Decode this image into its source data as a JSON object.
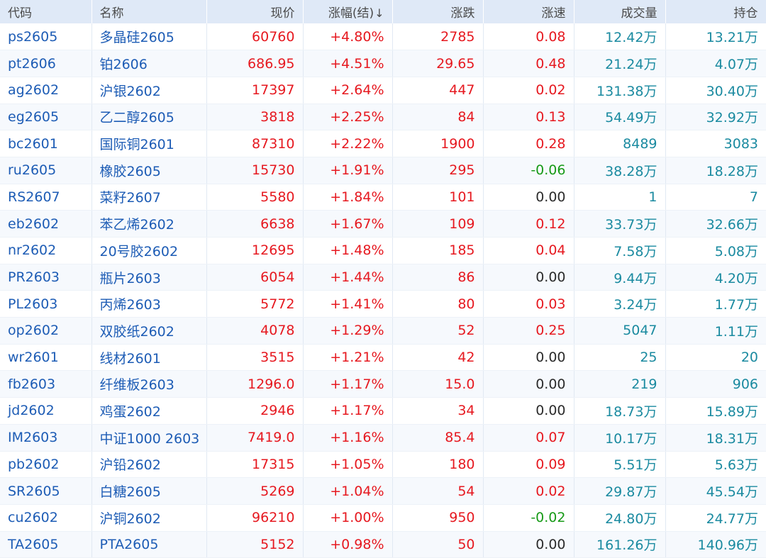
{
  "header": {
    "code": "代码",
    "name": "名称",
    "price": "现价",
    "change_pct": "涨幅(结)",
    "change": "涨跌",
    "speed": "涨速",
    "volume": "成交量",
    "open_interest": "持仓"
  },
  "rows": [
    {
      "code": "ps2605",
      "name": "多晶硅2605",
      "price": "60760",
      "change_pct": "+4.80%",
      "change": "2785",
      "speed": "0.08",
      "speed_dir": "up",
      "volume": "12.42万",
      "open_interest": "13.21万"
    },
    {
      "code": "pt2606",
      "name": "铂2606",
      "price": "686.95",
      "change_pct": "+4.51%",
      "change": "29.65",
      "speed": "0.48",
      "speed_dir": "up",
      "volume": "21.24万",
      "open_interest": "4.07万"
    },
    {
      "code": "ag2602",
      "name": "沪银2602",
      "price": "17397",
      "change_pct": "+2.64%",
      "change": "447",
      "speed": "0.02",
      "speed_dir": "up",
      "volume": "131.38万",
      "open_interest": "30.40万"
    },
    {
      "code": "eg2605",
      "name": "乙二醇2605",
      "price": "3818",
      "change_pct": "+2.25%",
      "change": "84",
      "speed": "0.13",
      "speed_dir": "up",
      "volume": "54.49万",
      "open_interest": "32.92万"
    },
    {
      "code": "bc2601",
      "name": "国际铜2601",
      "price": "87310",
      "change_pct": "+2.22%",
      "change": "1900",
      "speed": "0.28",
      "speed_dir": "up",
      "volume": "8489",
      "open_interest": "3083"
    },
    {
      "code": "ru2605",
      "name": "橡胶2605",
      "price": "15730",
      "change_pct": "+1.91%",
      "change": "295",
      "speed": "-0.06",
      "speed_dir": "down",
      "volume": "38.28万",
      "open_interest": "18.28万"
    },
    {
      "code": "RS2607",
      "name": "菜籽2607",
      "price": "5580",
      "change_pct": "+1.84%",
      "change": "101",
      "speed": "0.00",
      "speed_dir": "flat",
      "volume": "1",
      "open_interest": "7"
    },
    {
      "code": "eb2602",
      "name": "苯乙烯2602",
      "price": "6638",
      "change_pct": "+1.67%",
      "change": "109",
      "speed": "0.12",
      "speed_dir": "up",
      "volume": "33.73万",
      "open_interest": "32.66万"
    },
    {
      "code": "nr2602",
      "name": "20号胶2602",
      "price": "12695",
      "change_pct": "+1.48%",
      "change": "185",
      "speed": "0.04",
      "speed_dir": "up",
      "volume": "7.58万",
      "open_interest": "5.08万"
    },
    {
      "code": "PR2603",
      "name": "瓶片2603",
      "price": "6054",
      "change_pct": "+1.44%",
      "change": "86",
      "speed": "0.00",
      "speed_dir": "flat",
      "volume": "9.44万",
      "open_interest": "4.20万"
    },
    {
      "code": "PL2603",
      "name": "丙烯2603",
      "price": "5772",
      "change_pct": "+1.41%",
      "change": "80",
      "speed": "0.03",
      "speed_dir": "up",
      "volume": "3.24万",
      "open_interest": "1.77万"
    },
    {
      "code": "op2602",
      "name": "双胶纸2602",
      "price": "4078",
      "change_pct": "+1.29%",
      "change": "52",
      "speed": "0.25",
      "speed_dir": "up",
      "volume": "5047",
      "open_interest": "1.11万"
    },
    {
      "code": "wr2601",
      "name": "线材2601",
      "price": "3515",
      "change_pct": "+1.21%",
      "change": "42",
      "speed": "0.00",
      "speed_dir": "flat",
      "volume": "25",
      "open_interest": "20"
    },
    {
      "code": "fb2603",
      "name": "纤维板2603",
      "price": "1296.0",
      "change_pct": "+1.17%",
      "change": "15.0",
      "speed": "0.00",
      "speed_dir": "flat",
      "volume": "219",
      "open_interest": "906"
    },
    {
      "code": "jd2602",
      "name": "鸡蛋2602",
      "price": "2946",
      "change_pct": "+1.17%",
      "change": "34",
      "speed": "0.00",
      "speed_dir": "flat",
      "volume": "18.73万",
      "open_interest": "15.89万"
    },
    {
      "code": "IM2603",
      "name": "中证1000 2603",
      "price": "7419.0",
      "change_pct": "+1.16%",
      "change": "85.4",
      "speed": "0.07",
      "speed_dir": "up",
      "volume": "10.17万",
      "open_interest": "18.31万"
    },
    {
      "code": "pb2602",
      "name": "沪铅2602",
      "price": "17315",
      "change_pct": "+1.05%",
      "change": "180",
      "speed": "0.09",
      "speed_dir": "up",
      "volume": "5.51万",
      "open_interest": "5.63万"
    },
    {
      "code": "SR2605",
      "name": "白糖2605",
      "price": "5269",
      "change_pct": "+1.04%",
      "change": "54",
      "speed": "0.02",
      "speed_dir": "up",
      "volume": "29.87万",
      "open_interest": "45.54万"
    },
    {
      "code": "cu2602",
      "name": "沪铜2602",
      "price": "96210",
      "change_pct": "+1.00%",
      "change": "950",
      "speed": "-0.02",
      "speed_dir": "down",
      "volume": "24.80万",
      "open_interest": "24.77万"
    },
    {
      "code": "TA2605",
      "name": "PTA2605",
      "price": "5152",
      "change_pct": "+0.98%",
      "change": "50",
      "speed": "0.00",
      "speed_dir": "flat",
      "volume": "161.26万",
      "open_interest": "140.96万"
    }
  ],
  "icons": {
    "sort": "sort-descending-arrow-icon",
    "sort_glyph": "↓"
  },
  "colors": {
    "up": "#e6181f",
    "down": "#179a17",
    "flat": "#2b2b2b",
    "volume": "#1a8aa0",
    "code": "#1d5cb5",
    "header_bg": "#dfe9f7"
  }
}
